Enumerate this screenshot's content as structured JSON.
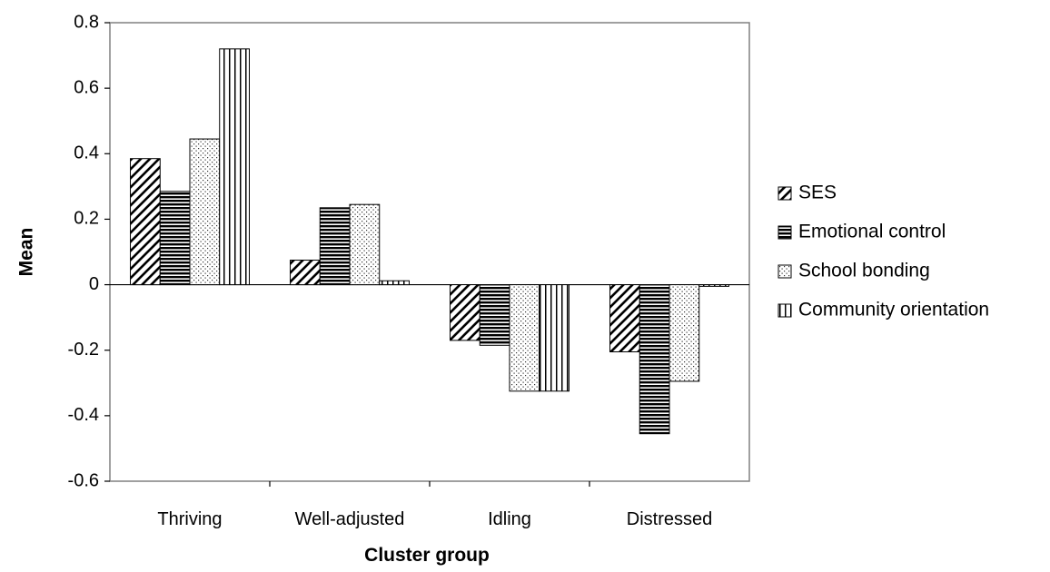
{
  "chart_data": {
    "type": "bar",
    "title": "",
    "xlabel": "Cluster group",
    "ylabel": "Mean",
    "ylim": [
      -0.6,
      0.8
    ],
    "yticks": [
      0.8,
      0.6,
      0.4,
      0.2,
      0,
      -0.2,
      -0.4,
      -0.6
    ],
    "ytick_labels": [
      "0.8",
      "0.6",
      "0.4",
      "0.2",
      "0",
      "-0.2",
      "-0.4",
      "-0.6"
    ],
    "grid": false,
    "legend_position": "right",
    "categories": [
      "Thriving",
      "Well-adjusted",
      "Idling",
      "Distressed"
    ],
    "series": [
      {
        "name": "SES",
        "pattern": "diagonal-hatch",
        "values": [
          0.385,
          0.075,
          -0.17,
          -0.205
        ]
      },
      {
        "name": "Emotional control",
        "pattern": "horizontal-lines",
        "values": [
          0.285,
          0.235,
          -0.185,
          -0.455
        ]
      },
      {
        "name": "School bonding",
        "pattern": "dots",
        "values": [
          0.445,
          0.245,
          -0.325,
          -0.295
        ]
      },
      {
        "name": "Community orientation",
        "pattern": "vertical-lines",
        "values": [
          0.72,
          0.012,
          -0.325,
          -0.005
        ]
      }
    ]
  }
}
